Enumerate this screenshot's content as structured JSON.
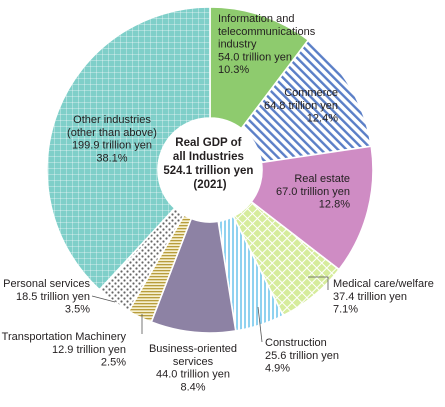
{
  "chart_data": {
    "type": "pie",
    "center_label": [
      "Real GDP of",
      "all Industries",
      "524.1 trillion yen",
      "(2021)"
    ],
    "slices": [
      {
        "name": "Information and telecommunications industry",
        "label_lines": [
          "Information and",
          "telecommunications",
          "industry",
          "54.0 trillion yen",
          "10.3%"
        ],
        "value": 54.0,
        "percent": 10.3,
        "color": "#8ecb6e",
        "pattern": "solid"
      },
      {
        "name": "Commerce",
        "label_lines": [
          "Commerce",
          "64.8 trillion yen",
          "12.4%"
        ],
        "value": 64.8,
        "percent": 12.4,
        "color": "#5b7fc7",
        "pattern": "diagonal-stripes"
      },
      {
        "name": "Real estate",
        "label_lines": [
          "Real estate",
          "67.0 trillion yen",
          "12.8%"
        ],
        "value": 67.0,
        "percent": 12.8,
        "color": "#cf8cc4",
        "pattern": "solid"
      },
      {
        "name": "Medical care/welfare",
        "label_lines": [
          "Medical care/welfare",
          "37.4 trillion yen",
          "7.1%"
        ],
        "value": 37.4,
        "percent": 7.1,
        "color": "#d6ec9c",
        "pattern": "crosshatch"
      },
      {
        "name": "Construction",
        "label_lines": [
          "Construction",
          "25.6 trillion yen",
          "4.9%"
        ],
        "value": 25.6,
        "percent": 4.9,
        "color": "#a9dcf3",
        "pattern": "vertical-stripes"
      },
      {
        "name": "Business-oriented services",
        "label_lines": [
          "Business-oriented",
          "services",
          "44.0 trillion yen",
          "8.4%"
        ],
        "value": 44.0,
        "percent": 8.4,
        "color": "#8d82a4",
        "pattern": "solid"
      },
      {
        "name": "Transportation Machinery",
        "label_lines": [
          "Transportation Machinery",
          "12.9 trillion yen",
          "2.5%"
        ],
        "value": 12.9,
        "percent": 2.5,
        "color": "#dfd090",
        "pattern": "horizontal-stripes"
      },
      {
        "name": "Personal services",
        "label_lines": [
          "Personal services",
          "18.5 trillion yen",
          "3.5%"
        ],
        "value": 18.5,
        "percent": 3.5,
        "color": "#8a8a8a",
        "pattern": "dots"
      },
      {
        "name": "Other industries (other than above)",
        "label_lines": [
          "Other industries",
          "(other than above)",
          "199.9 trillion yen",
          "38.1%"
        ],
        "value": 199.9,
        "percent": 38.1,
        "color": "#7fcfc9",
        "pattern": "grid"
      }
    ]
  }
}
